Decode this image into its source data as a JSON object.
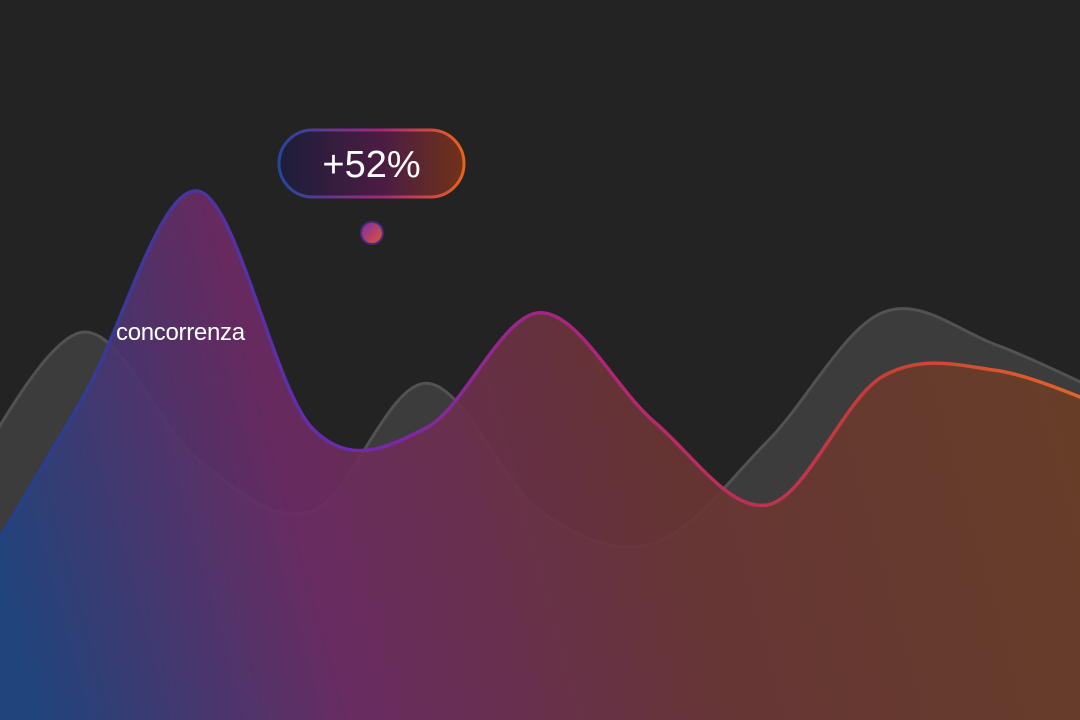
{
  "chart_data": {
    "type": "area",
    "x": [
      0,
      1,
      2,
      3,
      4,
      5,
      6,
      7,
      8,
      9,
      10
    ],
    "ylim": [
      0,
      100
    ],
    "grid": false,
    "series": [
      {
        "name": "concorrenza",
        "role": "comparison",
        "values": [
          48,
          70,
          50,
          42,
          62,
          42,
          37,
          53,
          73,
          68,
          60
        ],
        "color": "#555555"
      },
      {
        "role": "highlight",
        "values": [
          30,
          60,
          92,
          55,
          55,
          73,
          56,
          43,
          63,
          64,
          58
        ],
        "colors": [
          "#1f3f87",
          "#6a2366",
          "#c4242a",
          "#e06025"
        ]
      }
    ],
    "annotation": {
      "text": "+52%",
      "series_index": 1,
      "x": 2,
      "y": 92
    }
  }
}
